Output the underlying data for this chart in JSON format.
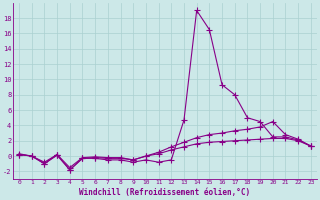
{
  "x": [
    0,
    1,
    2,
    3,
    4,
    5,
    6,
    7,
    8,
    9,
    10,
    11,
    12,
    13,
    14,
    15,
    16,
    17,
    18,
    19,
    20,
    21,
    22,
    23
  ],
  "series1": [
    0.3,
    0.0,
    -1.0,
    0.2,
    -1.8,
    -0.3,
    -0.3,
    -0.5,
    -0.5,
    -0.8,
    -0.5,
    -0.8,
    -0.5,
    4.7,
    19.0,
    16.5,
    9.3,
    8.0,
    5.0,
    4.5,
    2.5,
    2.5,
    2.1,
    1.3
  ],
  "series2": [
    0.2,
    0.0,
    -1.0,
    0.1,
    -1.8,
    -0.3,
    -0.2,
    -0.3,
    -0.3,
    -0.5,
    0.0,
    0.5,
    1.2,
    1.8,
    2.4,
    2.8,
    3.0,
    3.3,
    3.5,
    3.8,
    4.5,
    2.8,
    2.2,
    1.3
  ],
  "series3": [
    0.2,
    0.0,
    -0.8,
    0.2,
    -1.5,
    -0.2,
    -0.1,
    -0.2,
    -0.2,
    -0.5,
    0.0,
    0.3,
    0.8,
    1.2,
    1.6,
    1.8,
    1.9,
    2.0,
    2.1,
    2.2,
    2.3,
    2.3,
    2.0,
    1.3
  ],
  "line_color": "#880088",
  "bg_color": "#cce8e8",
  "grid_color": "#aad0d0",
  "xlabel": "Windchill (Refroidissement éolien,°C)",
  "ylim": [
    -3,
    20
  ],
  "xlim": [
    -0.5,
    23.5
  ],
  "yticks": [
    -2,
    0,
    2,
    4,
    6,
    8,
    10,
    12,
    14,
    16,
    18
  ],
  "xticks": [
    0,
    1,
    2,
    3,
    4,
    5,
    6,
    7,
    8,
    9,
    10,
    11,
    12,
    13,
    14,
    15,
    16,
    17,
    18,
    19,
    20,
    21,
    22,
    23
  ]
}
